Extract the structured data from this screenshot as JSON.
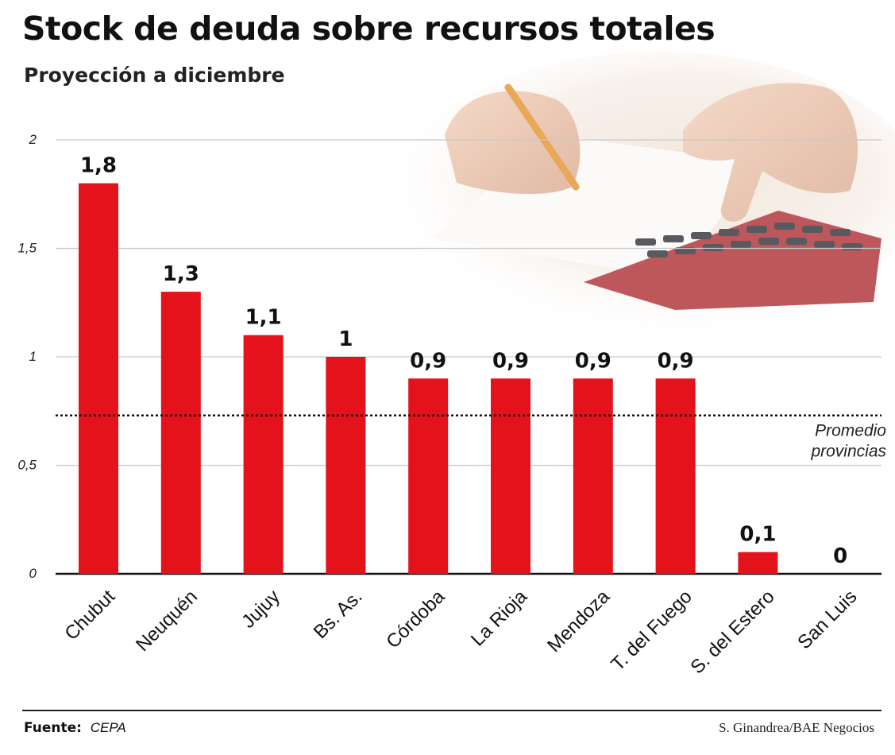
{
  "chart_data": {
    "type": "bar",
    "title": "Stock de deuda sobre recursos totales",
    "subtitle": "Proyección a diciembre",
    "categories": [
      "Chubut",
      "Neuquén",
      "Jujuy",
      "Bs. As.",
      "Córdoba",
      "La Rioja",
      "Mendoza",
      "T. del Fuego",
      "S. del Estero",
      "San Luis"
    ],
    "values": [
      1.8,
      1.3,
      1.1,
      1,
      0.9,
      0.9,
      0.9,
      0.9,
      0.1,
      0
    ],
    "value_labels": [
      "1,8",
      "1,3",
      "1,1",
      "1",
      "0,9",
      "0,9",
      "0,9",
      "0,9",
      "0,1",
      "0"
    ],
    "yticks": [
      0,
      0.5,
      1,
      1.5,
      2
    ],
    "ytick_labels": [
      "0",
      "0,5",
      "1",
      "1,5",
      "2"
    ],
    "ylim": [
      0,
      2
    ],
    "grid": true,
    "reference_line": {
      "value": 0.73,
      "label_line1": "Promedio",
      "label_line2": "provincias"
    },
    "bar_color": "#e3121b"
  },
  "footer": {
    "source_label": "Fuente:",
    "source_value": "CEPA",
    "credit": "S. Ginandrea/BAE Negocios"
  }
}
